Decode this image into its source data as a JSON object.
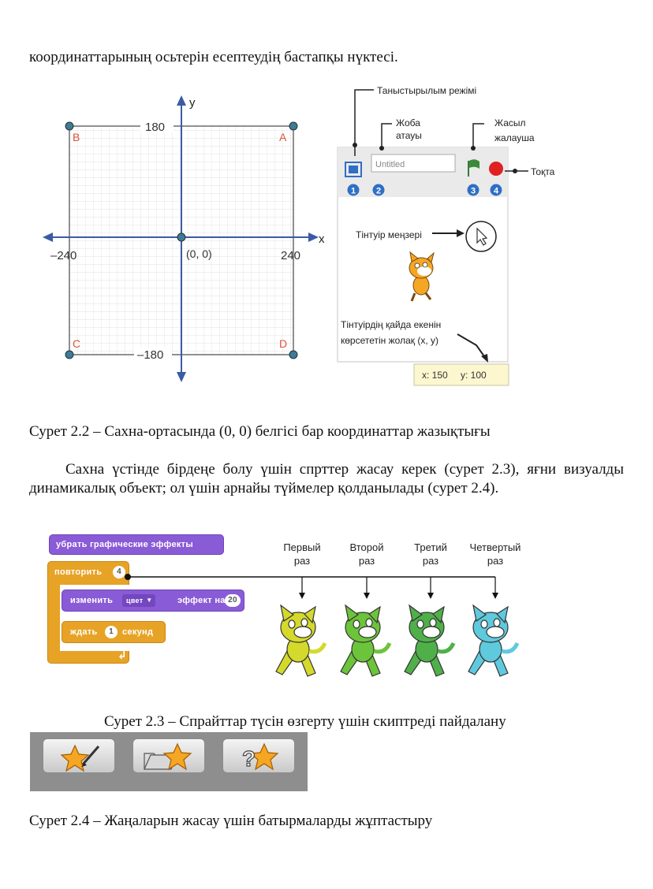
{
  "document": {
    "intro_line": "координаттарының осьтерін есептеудің бастапқы нүктесі.",
    "paragraph1": "Сахна үстінде бірдеңе болу үшін спрттер жасау керек (сурет 2.3), яғни визуалды динамикалық объект; ол үшін арнайы түймелер қолданылады (сурет 2.4).",
    "caption_2_2": "Сурет 2.2   –   Сахна-ортасында (0, 0) белгісі бар координаттар жазықтығы",
    "caption_2_3": "Сурет 2.3 –  Спрайттар түсін өзгерту үшін скиптреді пайдалану",
    "caption_2_4": "Сурет 2.4 – Жаңаларын жасау үшін батырмаларды жұптастыру"
  },
  "coordinate_plane": {
    "y_axis_label": "y",
    "x_axis_label": "x",
    "top_value": "180",
    "bottom_value": "–180",
    "left_value": "–240",
    "right_value": "240",
    "origin_label": "(0, 0)",
    "corner_a": "A",
    "corner_b": "B",
    "corner_c": "C",
    "corner_d": "D",
    "axis_color": "#3b5ba5",
    "corner_color": "#d9543a"
  },
  "stage_panel": {
    "presentation_mode_label": "Таныстырылым режімі",
    "project_name_label_line1": "Жоба",
    "project_name_label_line2": "атауы",
    "green_flag_label_line1": "Жасыл",
    "green_flag_label_line2": "жалауша",
    "stop_label": "Тоқта",
    "project_name_input": "Untitled",
    "marker_1": "1",
    "marker_2": "2",
    "marker_3": "3",
    "marker_4": "4",
    "mouse_pointer_label": "Тінтуір меңзері",
    "coord_bar_caption_line1": "Тінтуірдің қайда екенін",
    "coord_bar_caption_line2": "көрсететін жолақ (x, y)",
    "coord_x_value": "x: 150",
    "coord_y_value": "y: 100",
    "marker_color": "#2f6fc4",
    "flag_color": "#3b8a3a",
    "stop_color": "#e02020"
  },
  "script_figure": {
    "block_clear_effects": "убрать графические эффекты",
    "block_repeat": "повторить",
    "repeat_count": "4",
    "block_change": "изменить",
    "effect_dropdown": "цвет",
    "block_effect_by": "эффект на",
    "effect_amount": "20",
    "block_wait": "ждать",
    "wait_value": "1",
    "block_seconds": "секунд",
    "end_arrow": "↲",
    "iteration_labels": [
      {
        "line1": "Первый",
        "line2": "раз"
      },
      {
        "line1": "Второй",
        "line2": "раз"
      },
      {
        "line1": "Третий",
        "line2": "раз"
      },
      {
        "line1": "Четвертый",
        "line2": "раз"
      }
    ],
    "cat_colors": [
      "#d4d92c",
      "#6cc43a",
      "#4fb04a",
      "#5fc9dd"
    ],
    "looks_color": "#8a5bd6",
    "control_color": "#e7a326"
  },
  "sprite_buttons": {
    "buttons": [
      {
        "icon": "paint-new-sprite-icon"
      },
      {
        "icon": "upload-sprite-from-file-icon"
      },
      {
        "icon": "random-sprite-icon"
      }
    ],
    "star_color": "#f5a623"
  }
}
